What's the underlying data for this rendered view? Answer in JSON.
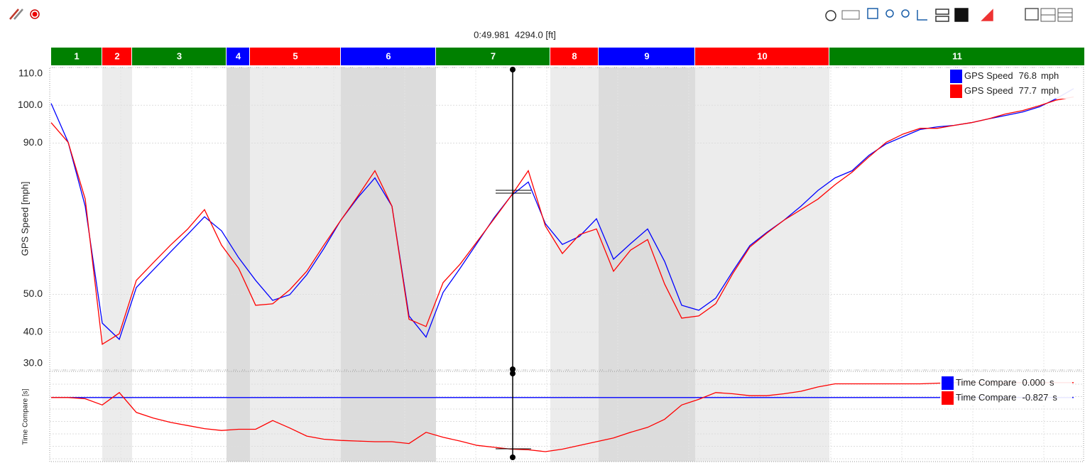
{
  "chart_data": [
    {
      "type": "line",
      "cursor_label": "0:49.981  4294.0 [ft]",
      "segments": [
        {
          "label": "1",
          "color": "#008000"
        },
        {
          "label": "2",
          "color": "#ff0000"
        },
        {
          "label": "3",
          "color": "#008000"
        },
        {
          "label": "4",
          "color": "#0000ff"
        },
        {
          "label": "5",
          "color": "#ff0000"
        },
        {
          "label": "6",
          "color": "#0000ff"
        },
        {
          "label": "7",
          "color": "#008000"
        },
        {
          "label": "8",
          "color": "#ff0000"
        },
        {
          "label": "9",
          "color": "#0000ff"
        },
        {
          "label": "10",
          "color": "#ff0000"
        },
        {
          "label": "11",
          "color": "#008000"
        }
      ],
      "ylabel": "GPS Speed [mph]",
      "ylim": [
        30,
        110
      ],
      "yticks": [
        {
          "value": 30,
          "label": "30.0"
        },
        {
          "value": 40,
          "label": "40.0"
        },
        {
          "value": 50,
          "label": "50.0"
        },
        {
          "value": 90,
          "label": "90.0"
        },
        {
          "value": 100,
          "label": "100.0"
        },
        {
          "value": 110,
          "label": "110.0"
        }
      ],
      "grid": true,
      "series": [
        {
          "name": "GPS Speed",
          "color": "#0000ff",
          "cursor_value": "76.8",
          "unit": "mph",
          "values": [
            100.5,
            90.2,
            73.3,
            42.4,
            38.1,
            51.8,
            56.5,
            61.2,
            65.8,
            70.5,
            66.8,
            59.7,
            53.7,
            48.4,
            49.9,
            55.2,
            62.1,
            69.6,
            75.6,
            80.8,
            73.3,
            44.3,
            38.7,
            50.5,
            56.9,
            63.6,
            70.3,
            76.1,
            79.7,
            68.7,
            63.2,
            65.3,
            70.0,
            59.3,
            63.4,
            67.3,
            58.7,
            47.1,
            45.8,
            49.0,
            56.1,
            62.9,
            66.4,
            69.6,
            73.3,
            77.5,
            80.8,
            82.7,
            86.8,
            89.8,
            91.7,
            93.6,
            94.3,
            94.7,
            95.4,
            96.4,
            97.3,
            98.2,
            99.6,
            101.8,
            104.4
          ]
        },
        {
          "name": "GPS Speed",
          "color": "#ff0000",
          "cursor_value": "77.7",
          "unit": "mph",
          "values": [
            95.4,
            90.2,
            75.2,
            36.8,
            39.6,
            53.7,
            58.4,
            63.0,
            67.2,
            72.4,
            63.0,
            56.9,
            47.1,
            47.5,
            51.2,
            56.1,
            63.0,
            69.6,
            76.0,
            82.7,
            73.3,
            43.4,
            41.5,
            53.1,
            58.0,
            64.0,
            70.0,
            76.1,
            82.7,
            68.1,
            60.8,
            65.8,
            67.3,
            56.1,
            61.7,
            64.5,
            52.7,
            43.7,
            44.3,
            47.5,
            55.5,
            62.5,
            66.2,
            69.6,
            72.4,
            75.2,
            79.0,
            82.3,
            86.4,
            90.2,
            92.4,
            93.9,
            93.9,
            94.7,
            95.4,
            96.4,
            97.7,
            98.6,
            99.9,
            101.4,
            102.2
          ]
        }
      ]
    },
    {
      "type": "line",
      "ylabel": "Time Compare [s]",
      "ylim": [
        -1.03,
        0.42
      ],
      "series": [
        {
          "name": "Time Compare",
          "color": "#0000ff",
          "cursor_value": "0.000",
          "unit": "s",
          "values": [
            0,
            0,
            0,
            0,
            0,
            0,
            0,
            0,
            0,
            0,
            0,
            0,
            0,
            0,
            0,
            0,
            0,
            0,
            0,
            0,
            0,
            0,
            0,
            0,
            0,
            0,
            0,
            0,
            0,
            0,
            0,
            0,
            0,
            0,
            0,
            0,
            0,
            0,
            0,
            0,
            0,
            0,
            0,
            0,
            0,
            0,
            0,
            0,
            0,
            0,
            0,
            0,
            0,
            0,
            0,
            0,
            0,
            0,
            0,
            0,
            0
          ]
        },
        {
          "name": "Time Compare",
          "color": "#ff0000",
          "cursor_value": "-0.827",
          "unit": "s",
          "values": [
            0,
            0,
            -0.02,
            -0.12,
            0.08,
            -0.24,
            -0.33,
            -0.4,
            -0.45,
            -0.5,
            -0.53,
            -0.51,
            -0.51,
            -0.37,
            -0.49,
            -0.62,
            -0.67,
            -0.69,
            -0.7,
            -0.71,
            -0.71,
            -0.74,
            -0.56,
            -0.64,
            -0.7,
            -0.77,
            -0.8,
            -0.83,
            -0.84,
            -0.87,
            -0.83,
            -0.77,
            -0.71,
            -0.65,
            -0.56,
            -0.48,
            -0.35,
            -0.12,
            -0.03,
            0.08,
            0.06,
            0.03,
            0.03,
            0.06,
            0.1,
            0.17,
            0.22,
            0.22,
            0.22,
            0.22,
            0.22,
            0.22,
            0.23,
            0.24,
            0.24,
            0.24,
            0.24,
            0.24,
            0.24,
            0.24,
            0.24
          ]
        }
      ]
    }
  ]
}
